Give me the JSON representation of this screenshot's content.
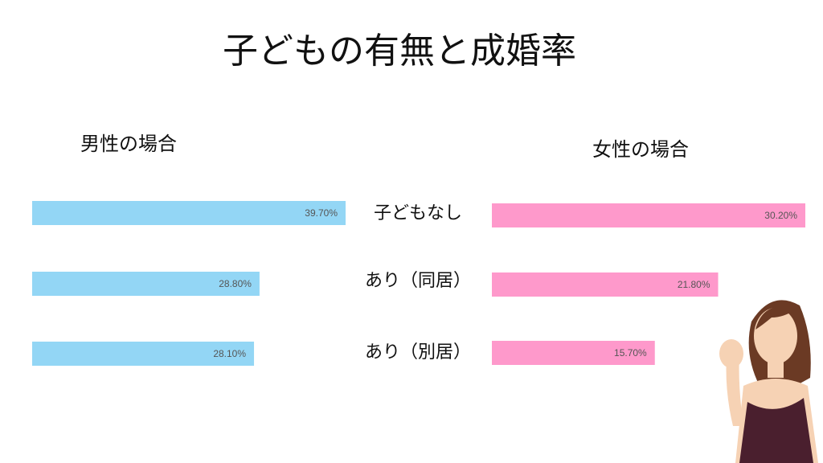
{
  "chart_data": {
    "type": "bar",
    "title": "子どもの有無と成婚率",
    "categories": [
      "子どもなし",
      "あり（同居）",
      "あり（別居）"
    ],
    "series": [
      {
        "name": "男性の場合",
        "color": "#93d6f5",
        "values": [
          39.7,
          28.8,
          28.1
        ],
        "value_labels": [
          "39.70%",
          "28.80%",
          "28.10%"
        ]
      },
      {
        "name": "女性の場合",
        "color": "#fe99cb",
        "values": [
          30.2,
          21.8,
          15.7
        ],
        "value_labels": [
          "30.20%",
          "21.80%",
          "15.70%"
        ]
      }
    ]
  }
}
